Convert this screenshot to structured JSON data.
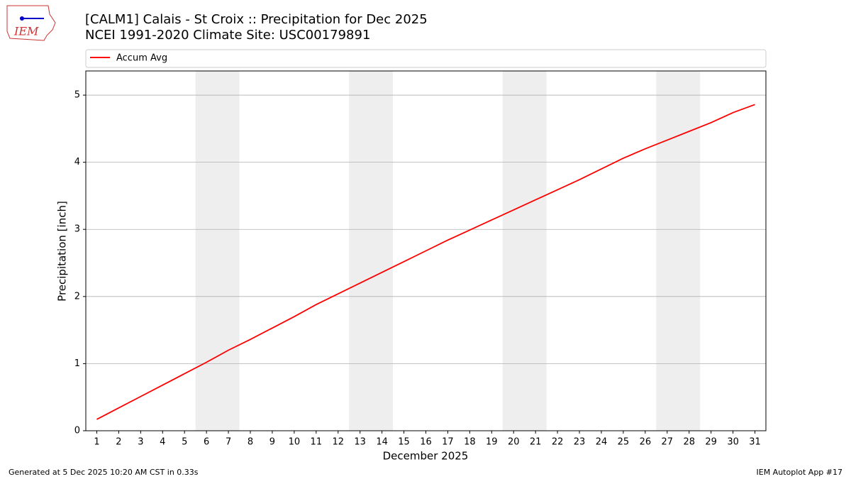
{
  "logo": "IEM",
  "chart_data": {
    "type": "line",
    "title": "[CALM1] Calais - St Croix :: Precipitation for Dec 2025",
    "subtitle": "NCEI 1991-2020 Climate Site: USC00179891",
    "x_label": "December 2025",
    "y_label": "Precipitation [inch]",
    "x": [
      1,
      2,
      3,
      4,
      5,
      6,
      7,
      8,
      9,
      10,
      11,
      12,
      13,
      14,
      15,
      16,
      17,
      18,
      19,
      20,
      21,
      22,
      23,
      24,
      25,
      26,
      27,
      28,
      29,
      30,
      31
    ],
    "series": [
      {
        "name": "Accum Avg",
        "color": "#ff0000",
        "values": [
          0.17,
          0.34,
          0.51,
          0.68,
          0.85,
          1.02,
          1.2,
          1.36,
          1.53,
          1.7,
          1.88,
          2.04,
          2.2,
          2.36,
          2.52,
          2.68,
          2.84,
          2.99,
          3.14,
          3.29,
          3.44,
          3.59,
          3.74,
          3.9,
          4.06,
          4.2,
          4.33,
          4.46,
          4.59,
          4.74,
          4.86
        ]
      }
    ],
    "xlim": [
      0.5,
      31.5
    ],
    "xticks": [
      1,
      2,
      3,
      4,
      5,
      6,
      7,
      8,
      9,
      10,
      11,
      12,
      13,
      14,
      15,
      16,
      17,
      18,
      19,
      20,
      21,
      22,
      23,
      24,
      25,
      26,
      27,
      28,
      29,
      30,
      31
    ],
    "ylim": [
      0,
      5.36
    ],
    "yticks": [
      0,
      1,
      2,
      3,
      4,
      5
    ],
    "grid": "y",
    "shaded_spans": [
      [
        5.5,
        7.5
      ],
      [
        12.5,
        14.5
      ],
      [
        19.5,
        21.5
      ],
      [
        26.5,
        28.5
      ]
    ],
    "shade_color": "#eeeeee",
    "legend": "top"
  },
  "footer": {
    "left": "Generated at 5 Dec 2025 10:20 AM CST in 0.33s",
    "right": "IEM Autoplot App #17"
  }
}
